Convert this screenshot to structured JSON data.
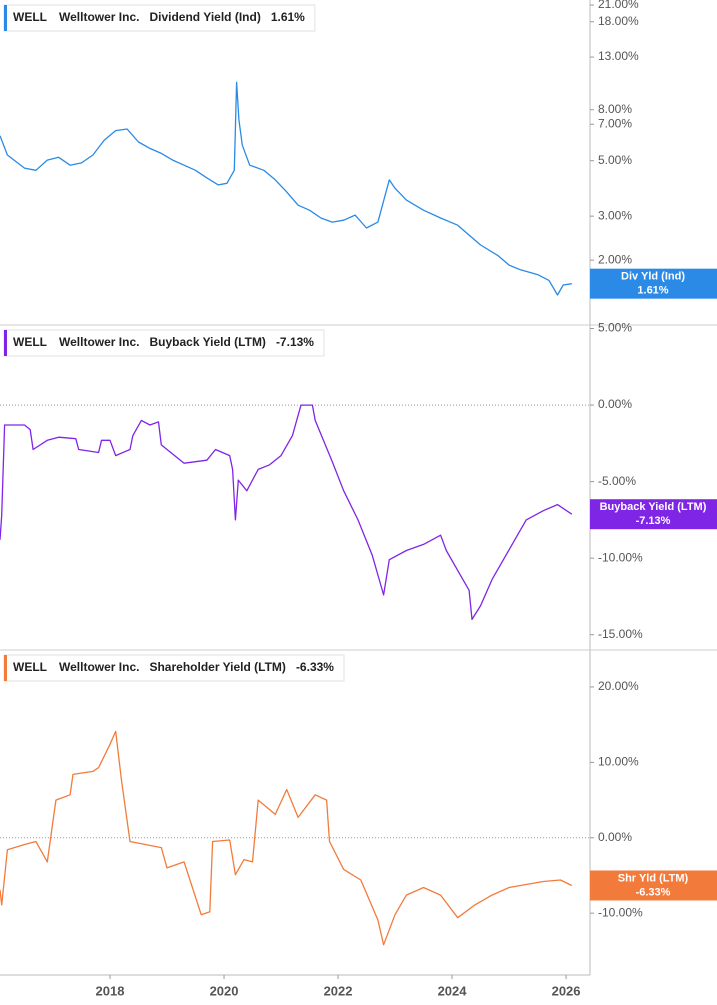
{
  "chart_data": [
    {
      "type": "line",
      "ticker": "WELL",
      "company": "Welltower Inc.",
      "log_scale": true,
      "zero_line": false,
      "xlim": [
        2016.07,
        2026.42
      ],
      "ylim": [
        1.1,
        22
      ],
      "yticks": [
        {
          "value": 2,
          "label": "2.00%"
        },
        {
          "value": 3,
          "label": "3.00%"
        },
        {
          "value": 5,
          "label": "5.00%"
        },
        {
          "value": 7,
          "label": "7.00%"
        },
        {
          "value": 8,
          "label": "8.00%"
        },
        {
          "value": 13,
          "label": "13.00%"
        },
        {
          "value": 18,
          "label": "18.00%"
        },
        {
          "value": 21,
          "label": "21.00%"
        }
      ],
      "series": [
        {
          "name": "Dividend Yield (Ind)",
          "color": "#2a8ae6",
          "x": [
            2016.07,
            2016.2,
            2016.5,
            2016.7,
            2016.9,
            2017.1,
            2017.3,
            2017.5,
            2017.7,
            2017.9,
            2018.1,
            2018.3,
            2018.5,
            2018.7,
            2018.9,
            2019.1,
            2019.3,
            2019.5,
            2019.7,
            2019.9,
            2020.05,
            2020.18,
            2020.22,
            2020.26,
            2020.32,
            2020.45,
            2020.7,
            2020.9,
            2021.1,
            2021.3,
            2021.5,
            2021.7,
            2021.9,
            2022.1,
            2022.3,
            2022.5,
            2022.7,
            2022.9,
            2023.0,
            2023.2,
            2023.5,
            2023.8,
            2024.1,
            2024.3,
            2024.5,
            2024.8,
            2025.0,
            2025.2,
            2025.5,
            2025.7,
            2025.85,
            2025.95,
            2026.1
          ],
          "values": [
            6.3,
            5.27,
            4.67,
            4.58,
            5.03,
            5.16,
            4.8,
            4.9,
            5.27,
            6.05,
            6.6,
            6.7,
            5.94,
            5.6,
            5.35,
            5.03,
            4.8,
            4.58,
            4.27,
            4.0,
            4.06,
            4.58,
            10.3,
            7.3,
            5.77,
            4.8,
            4.58,
            4.19,
            3.75,
            3.32,
            3.17,
            2.95,
            2.84,
            2.89,
            3.03,
            2.69,
            2.84,
            4.19,
            3.88,
            3.48,
            3.17,
            2.95,
            2.76,
            2.52,
            2.3,
            2.09,
            1.91,
            1.83,
            1.75,
            1.66,
            1.45,
            1.59,
            1.61
          ]
        }
      ],
      "badge": {
        "label": "Div Yld (Ind)",
        "value": 1.61,
        "value_label": "1.61%"
      }
    },
    {
      "type": "line",
      "ticker": "WELL",
      "company": "Welltower Inc.",
      "log_scale": false,
      "zero_line": true,
      "xlim": [
        2016.07,
        2026.42
      ],
      "ylim": [
        -16.0,
        5.23
      ],
      "yticks": [
        {
          "value": 5,
          "label": "5.00%"
        },
        {
          "value": 0,
          "label": "0.00%"
        },
        {
          "value": -5,
          "label": "-5.00%"
        },
        {
          "value": -10,
          "label": "-10.00%"
        },
        {
          "value": -15,
          "label": "-15.00%"
        }
      ],
      "series": [
        {
          "name": "Buyback Yield (LTM)",
          "color": "#7f25e6",
          "x": [
            2016.07,
            2016.1,
            2016.15,
            2016.5,
            2016.6,
            2016.65,
            2016.9,
            2017.1,
            2017.4,
            2017.45,
            2017.8,
            2017.85,
            2018.0,
            2018.1,
            2018.35,
            2018.4,
            2018.55,
            2018.7,
            2018.85,
            2018.9,
            2019.3,
            2019.7,
            2019.85,
            2020.1,
            2020.15,
            2020.2,
            2020.25,
            2020.4,
            2020.6,
            2020.8,
            2021.0,
            2021.2,
            2021.35,
            2021.55,
            2021.6,
            2021.9,
            2022.1,
            2022.35,
            2022.6,
            2022.8,
            2022.9,
            2023.2,
            2023.5,
            2023.8,
            2023.9,
            2024.1,
            2024.3,
            2024.35,
            2024.5,
            2024.7,
            2024.9,
            2025.1,
            2025.3,
            2025.6,
            2025.85,
            2026.1
          ],
          "values": [
            -8.8,
            -7.2,
            -1.3,
            -1.3,
            -1.6,
            -2.9,
            -2.3,
            -2.1,
            -2.2,
            -2.9,
            -3.1,
            -2.3,
            -2.3,
            -3.3,
            -2.9,
            -2.0,
            -1.0,
            -1.3,
            -1.1,
            -2.6,
            -3.8,
            -3.6,
            -2.9,
            -3.3,
            -4.2,
            -7.5,
            -4.9,
            -5.6,
            -4.2,
            -3.9,
            -3.3,
            -2.0,
            0,
            0,
            -1.0,
            -3.7,
            -5.6,
            -7.5,
            -9.8,
            -12.4,
            -10.1,
            -9.5,
            -9.1,
            -8.5,
            -9.5,
            -10.8,
            -12.1,
            -14.0,
            -13.1,
            -11.4,
            -10.1,
            -8.8,
            -7.5,
            -6.9,
            -6.5,
            -7.13
          ]
        }
      ],
      "badge": {
        "label": "Buyback Yield (LTM)",
        "value": -7.13,
        "value_label": "-7.13%"
      }
    },
    {
      "type": "line",
      "ticker": "WELL",
      "company": "Welltower Inc.",
      "log_scale": false,
      "zero_line": true,
      "xlim": [
        2016.07,
        2026.42
      ],
      "ylim": [
        -18.2,
        24.9
      ],
      "xticks": [
        2018,
        2020,
        2022,
        2024,
        2026
      ],
      "yticks": [
        {
          "value": 20,
          "label": "20.00%"
        },
        {
          "value": 10,
          "label": "10.00%"
        },
        {
          "value": 0,
          "label": "0.00%"
        },
        {
          "value": -10,
          "label": "-10.00%"
        }
      ],
      "series": [
        {
          "name": "Shareholder Yield (LTM)",
          "color": "#f27b3c",
          "x": [
            2016.07,
            2016.1,
            2016.2,
            2016.5,
            2016.7,
            2016.9,
            2017.05,
            2017.3,
            2017.35,
            2017.7,
            2017.8,
            2018.0,
            2018.1,
            2018.2,
            2018.35,
            2018.9,
            2019.0,
            2019.3,
            2019.6,
            2019.75,
            2019.8,
            2020.1,
            2020.2,
            2020.35,
            2020.5,
            2020.6,
            2020.9,
            2021.1,
            2021.3,
            2021.6,
            2021.8,
            2021.85,
            2022.1,
            2022.4,
            2022.7,
            2022.8,
            2023.0,
            2023.2,
            2023.5,
            2023.8,
            2024.1,
            2024.4,
            2024.7,
            2025.0,
            2025.3,
            2025.6,
            2025.9,
            2026.1
          ],
          "values": [
            -6.9,
            -8.9,
            -1.6,
            -0.9,
            -0.5,
            -3.2,
            5.0,
            5.7,
            8.4,
            8.8,
            9.3,
            12.4,
            14.1,
            7.7,
            -0.5,
            -1.3,
            -4.0,
            -3.2,
            -10.2,
            -9.8,
            -0.5,
            -0.3,
            -4.9,
            -2.9,
            -3.2,
            5.0,
            3.1,
            6.4,
            2.7,
            5.7,
            5.0,
            -0.5,
            -4.2,
            -5.6,
            -10.9,
            -14.2,
            -10.2,
            -7.6,
            -6.6,
            -7.6,
            -10.6,
            -8.9,
            -7.6,
            -6.6,
            -6.2,
            -5.8,
            -5.6,
            -6.33
          ]
        }
      ],
      "badge": {
        "label": "Shr Yld (LTM)",
        "value": -6.33,
        "value_label": "-6.33%"
      }
    }
  ]
}
